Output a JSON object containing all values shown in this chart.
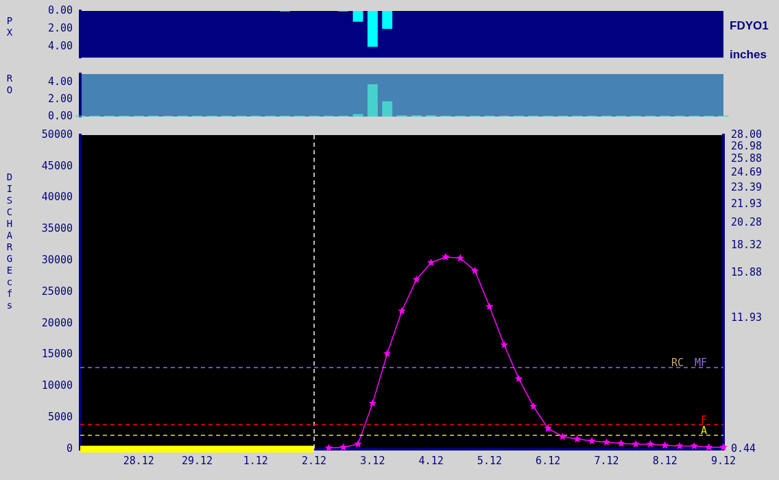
{
  "chart_data": [
    {
      "type": "bar",
      "ylabel": "PX",
      "annotations": [
        "FDYO1",
        "inches"
      ],
      "tick_labels": "y",
      "ylim": [
        5.2,
        0
      ],
      "yticks": [
        {
          "value": 0,
          "label": "0.00"
        },
        {
          "value": 2,
          "label": "2.00"
        },
        {
          "value": 4,
          "label": "4.00"
        }
      ],
      "categories": [
        null,
        null,
        null,
        null,
        "28.12",
        null,
        null,
        null,
        "29.12",
        null,
        null,
        null,
        "1.12",
        null,
        null,
        null,
        "2.12",
        null,
        null,
        null,
        "3.12",
        null,
        null,
        null,
        "4.12",
        null,
        null,
        null,
        "5.12",
        null,
        null,
        null,
        "6.12",
        null,
        null,
        null,
        "7.12",
        null,
        null,
        null,
        "8.12",
        null,
        null,
        null,
        "9.12"
      ],
      "series": [
        {
          "color": "#00ffff",
          "values": [
            0,
            0,
            0,
            0,
            0,
            0,
            0,
            0,
            0,
            0,
            0,
            0,
            0,
            0,
            0.05,
            0,
            0,
            0,
            0.05,
            1.2,
            4.0,
            2.0,
            0,
            0,
            0,
            0,
            0,
            0,
            0,
            0,
            0,
            0,
            0,
            0,
            0,
            0,
            0,
            0,
            0,
            0,
            0,
            0,
            0,
            0,
            0
          ]
        }
      ]
    },
    {
      "type": "bar",
      "ylabel": "RO",
      "tick_labels": "y",
      "ylim": [
        0,
        5
      ],
      "yticks": [
        {
          "value": 0,
          "label": "0.00"
        },
        {
          "value": 2,
          "label": "2.00"
        },
        {
          "value": 4,
          "label": "4.00"
        }
      ],
      "categories": [
        null,
        null,
        null,
        null,
        "28.12",
        null,
        null,
        null,
        "29.12",
        null,
        null,
        null,
        "1.12",
        null,
        null,
        null,
        "2.12",
        null,
        null,
        null,
        "3.12",
        null,
        null,
        null,
        "4.12",
        null,
        null,
        null,
        "5.12",
        null,
        null,
        null,
        "6.12",
        null,
        null,
        null,
        "7.12",
        null,
        null,
        null,
        "8.12",
        null,
        null,
        null,
        "9.12"
      ],
      "series": [
        {
          "color": "#48d1cc",
          "values": [
            0.1,
            0.1,
            0.1,
            0.1,
            0.1,
            0.1,
            0.1,
            0.1,
            0.1,
            0.1,
            0.1,
            0.1,
            0.1,
            0.1,
            0.1,
            0.1,
            0.1,
            0.1,
            0.1,
            0.3,
            3.8,
            1.8,
            0.15,
            0.15,
            0.15,
            0.1,
            0.1,
            0.1,
            0.1,
            0.1,
            0.1,
            0.1,
            0.1,
            0.1,
            0.1,
            0.1,
            0.1,
            0.1,
            0.1,
            0.1,
            0.1,
            0.1,
            0.1,
            0.1,
            0.1
          ]
        }
      ]
    },
    {
      "type": "line",
      "ylabel": "DISCHARGE cfs",
      "marker": "star",
      "categories": [
        null,
        null,
        null,
        null,
        "28.12",
        null,
        null,
        null,
        "29.12",
        null,
        null,
        null,
        "1.12",
        null,
        null,
        null,
        "2.12",
        null,
        null,
        null,
        "3.12",
        null,
        null,
        null,
        "4.12",
        null,
        null,
        null,
        "5.12",
        null,
        null,
        null,
        "6.12",
        null,
        null,
        null,
        "7.12",
        null,
        null,
        null,
        "8.12",
        null,
        null,
        null,
        "9.12"
      ],
      "ylim": [
        0,
        50000
      ],
      "yticks": [
        0,
        5000,
        10000,
        15000,
        20000,
        25000,
        30000,
        35000,
        40000,
        45000,
        50000
      ],
      "y2lim": [
        0.44,
        28.0
      ],
      "y2ticks": [
        {
          "value": 0.44,
          "label": "0.44"
        },
        11.93,
        15.88,
        18.32,
        20.28,
        21.93,
        23.39,
        24.69,
        25.88,
        26.98,
        {
          "value": 28.0,
          "label": "28.00"
        }
      ],
      "series": [
        {
          "color": "#ffff00",
          "marker": "none",
          "values": [
            0,
            0,
            0,
            0,
            0,
            0,
            0,
            0,
            0,
            0,
            0,
            0,
            0,
            0,
            0,
            0,
            0,
            null,
            null,
            null,
            null,
            null,
            null,
            null,
            null,
            null,
            null,
            null,
            null,
            null,
            null,
            null,
            null,
            null,
            null,
            null,
            null,
            null,
            null,
            null,
            null,
            null,
            null,
            null,
            null
          ]
        },
        {
          "color": "#ff00ff",
          "values": [
            null,
            null,
            null,
            null,
            null,
            null,
            null,
            null,
            null,
            null,
            null,
            null,
            null,
            null,
            null,
            null,
            null,
            200,
            300,
            800,
            7300,
            15200,
            22000,
            27000,
            29700,
            30600,
            30400,
            28400,
            22700,
            16600,
            11200,
            6800,
            3300,
            2000,
            1600,
            1300,
            1100,
            900,
            800,
            800,
            600,
            500,
            500,
            300,
            300
          ]
        }
      ],
      "ref_lines": [
        {
          "axis": "x",
          "value": "2.12",
          "color": "#ffffff",
          "line_style": "dashed"
        },
        {
          "axis": "y",
          "value": 13000,
          "label": "MF",
          "color": "#9370db",
          "line_style": "dashed"
        },
        {
          "axis": "y",
          "value": 3900,
          "label": "F",
          "color": "#ff0000",
          "line_style": "dashed"
        },
        {
          "axis": "y",
          "value": 2200,
          "label": "A",
          "color": "#e6e600",
          "line_style": "dashed"
        }
      ],
      "annotations": [
        {
          "text": "RC",
          "y": 13000
        }
      ]
    }
  ]
}
